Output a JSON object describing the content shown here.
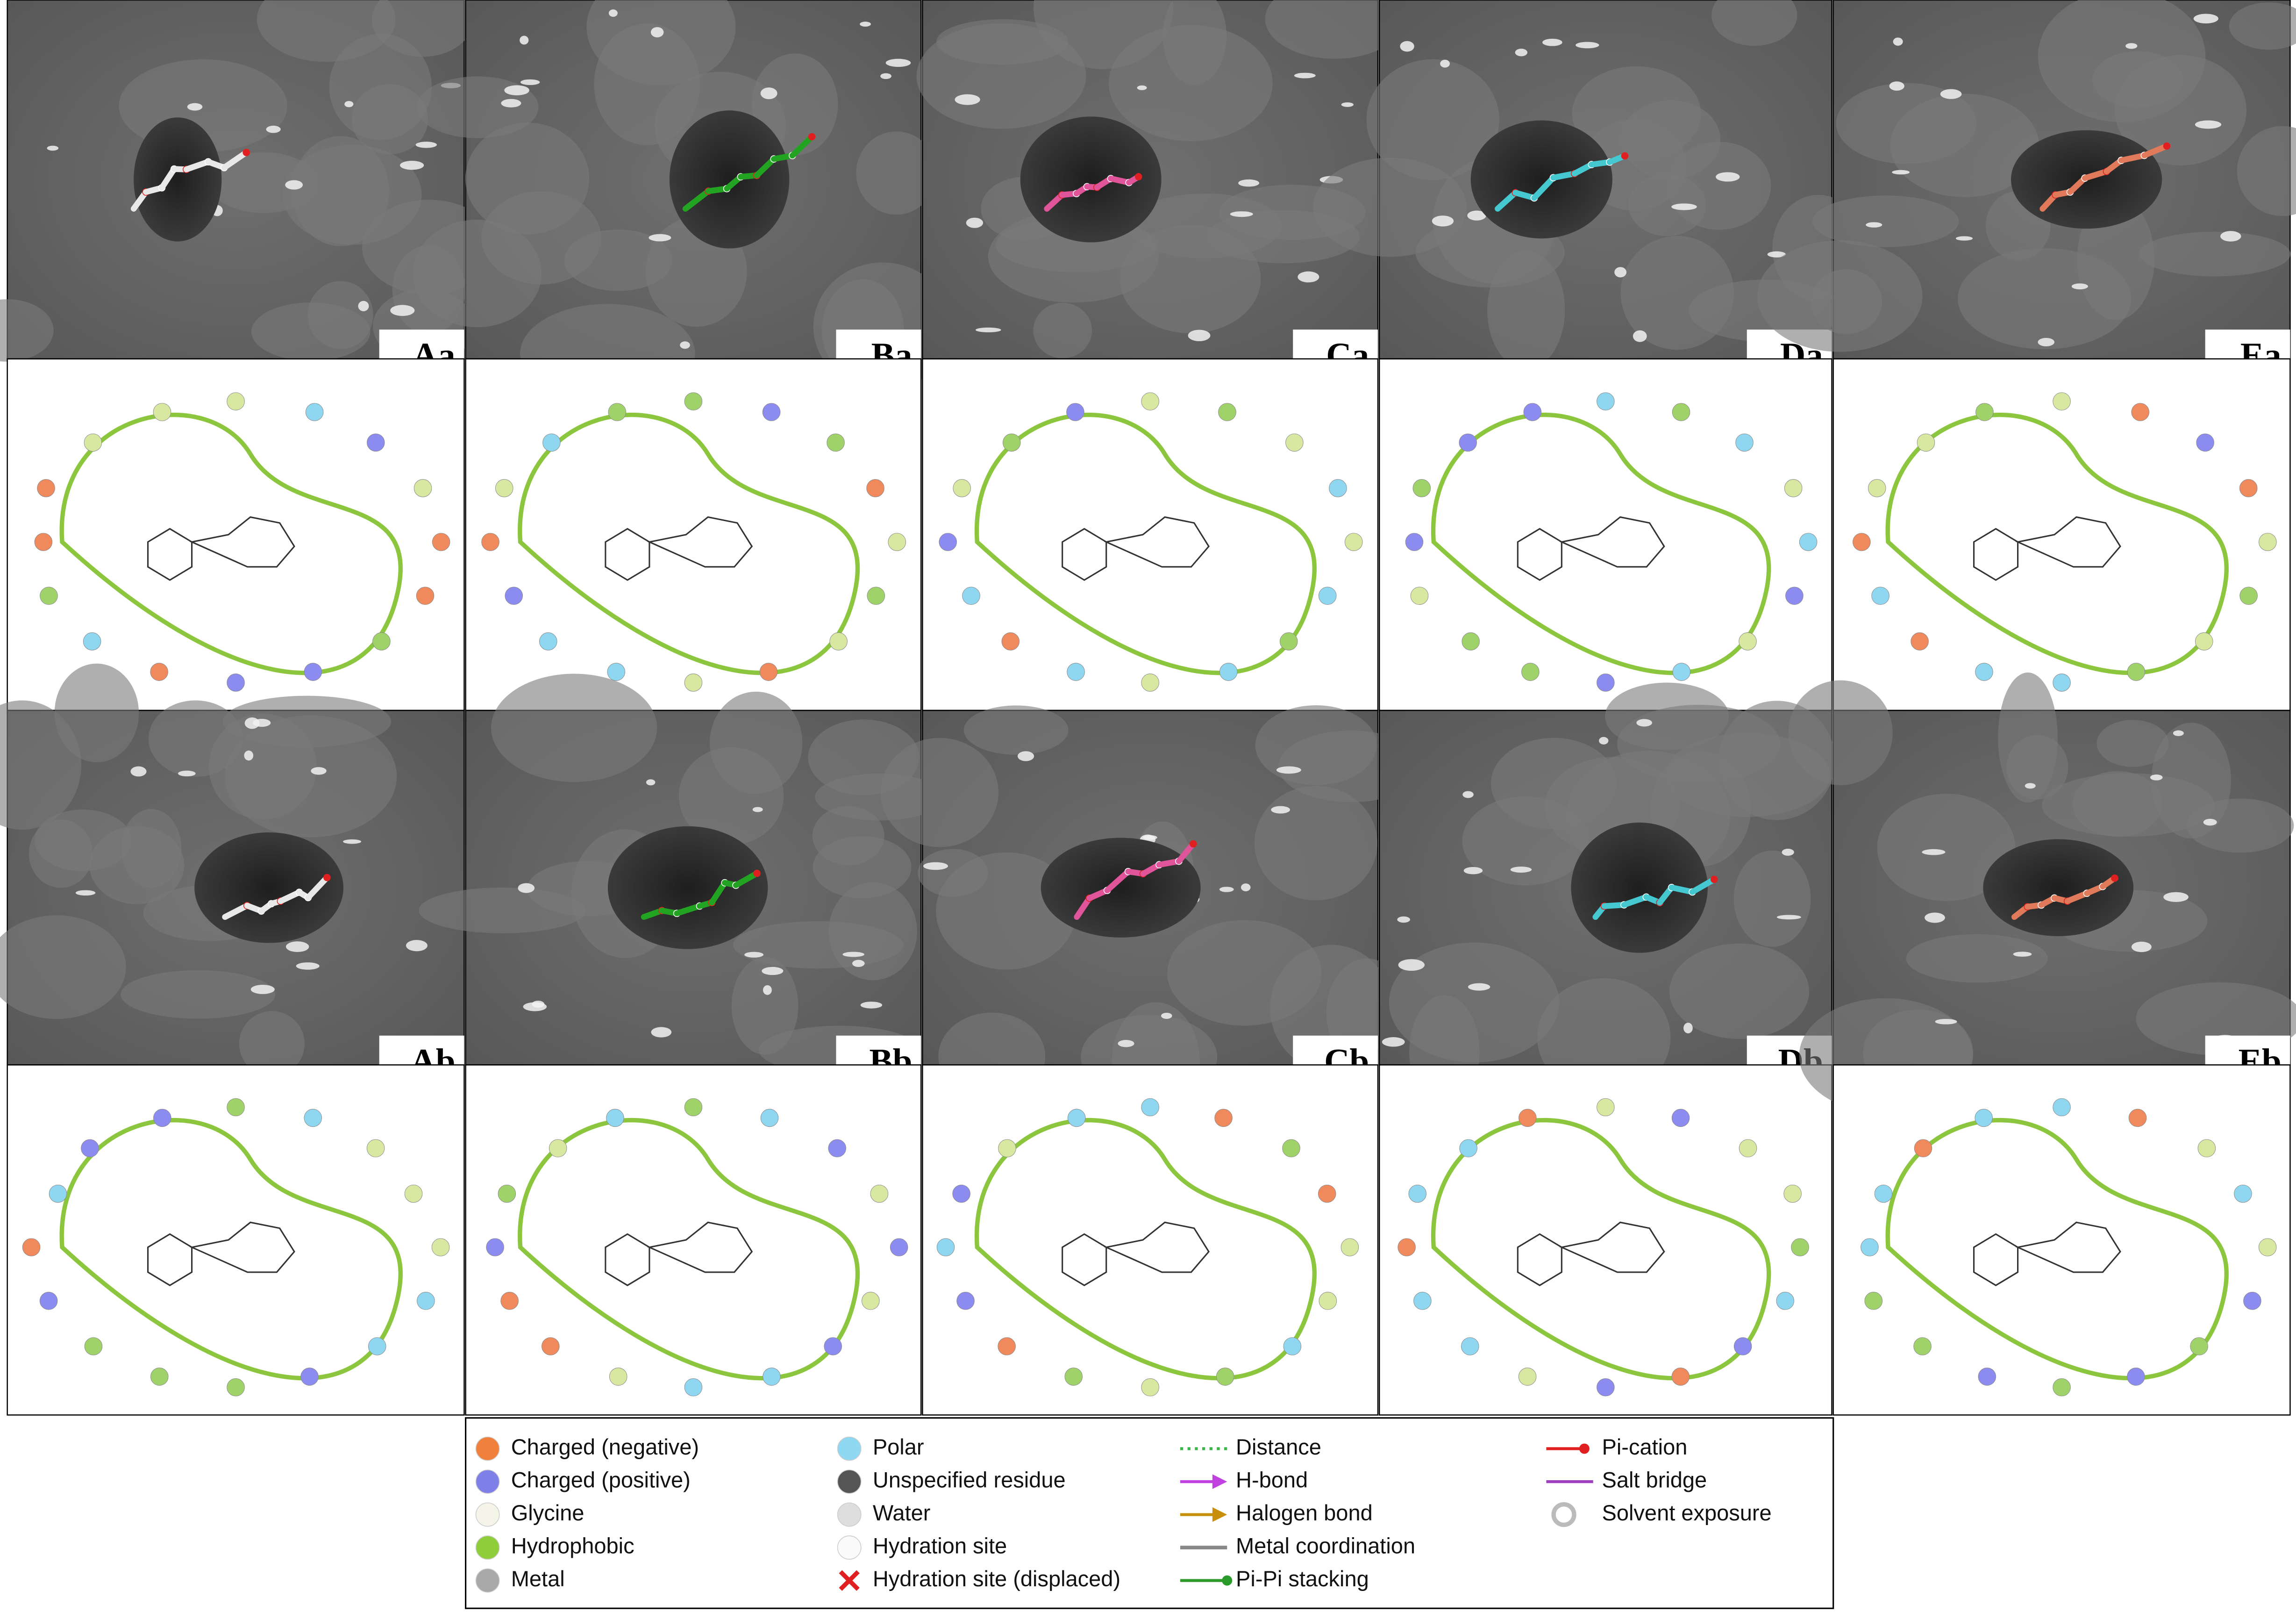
{
  "panels": [
    "Aa",
    "Ba",
    "Ca",
    "Da",
    "Ea",
    "Ab",
    "Bb",
    "Cb",
    "Db",
    "Eb"
  ],
  "legend": [
    [
      "Charged (negative)",
      "Charged (positive)",
      "Glycine",
      "Hydrophobic",
      "Metal"
    ],
    [
      "Polar",
      "Unspecified residue",
      "Water",
      "Hydration site",
      "Hydration site (displaced)"
    ],
    [
      "Distance",
      "H-bond",
      "Halogen bond",
      "Metal coordination",
      "Pi-Pi stacking"
    ],
    [
      "Pi-cation",
      "Salt bridge",
      "Solvent exposure"
    ]
  ]
}
